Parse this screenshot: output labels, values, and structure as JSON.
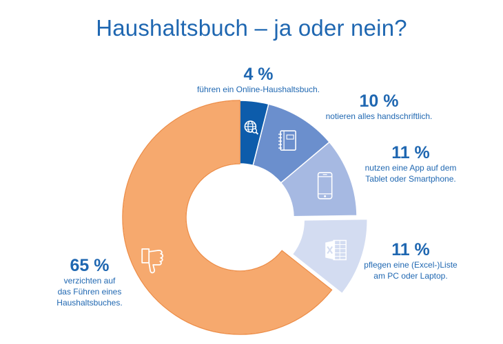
{
  "chart_data": {
    "type": "pie",
    "title": "Haushaltsbuch – ja oder nein?",
    "donut": true,
    "slices": [
      {
        "value_label": "4 %",
        "value": 4,
        "lines": [
          "führen ein Online-Haushaltsbuch."
        ],
        "color": "#0d5cab",
        "icon": "globe-search-icon"
      },
      {
        "value_label": "10 %",
        "value": 10,
        "lines": [
          "notieren alles handschriftlich."
        ],
        "color": "#6b8fcd",
        "icon": "notebook-icon"
      },
      {
        "value_label": "11 %",
        "value": 11,
        "lines": [
          "nutzen eine App auf dem",
          "Tablet oder Smartphone."
        ],
        "color": "#a6b9e2",
        "icon": "smartphone-icon"
      },
      {
        "value_label": "11 %",
        "value": 11,
        "lines": [
          "pflegen eine (Excel-)Liste",
          "am PC oder Laptop."
        ],
        "color": "#d3dcf1",
        "icon": "excel-icon"
      },
      {
        "value_label": "65 %",
        "value": 65,
        "lines": [
          "verzichten auf",
          "das Führen eines",
          "Haushaltsbuches."
        ],
        "color": "#f6a96e",
        "icon": "thumbs-down-icon"
      }
    ]
  }
}
